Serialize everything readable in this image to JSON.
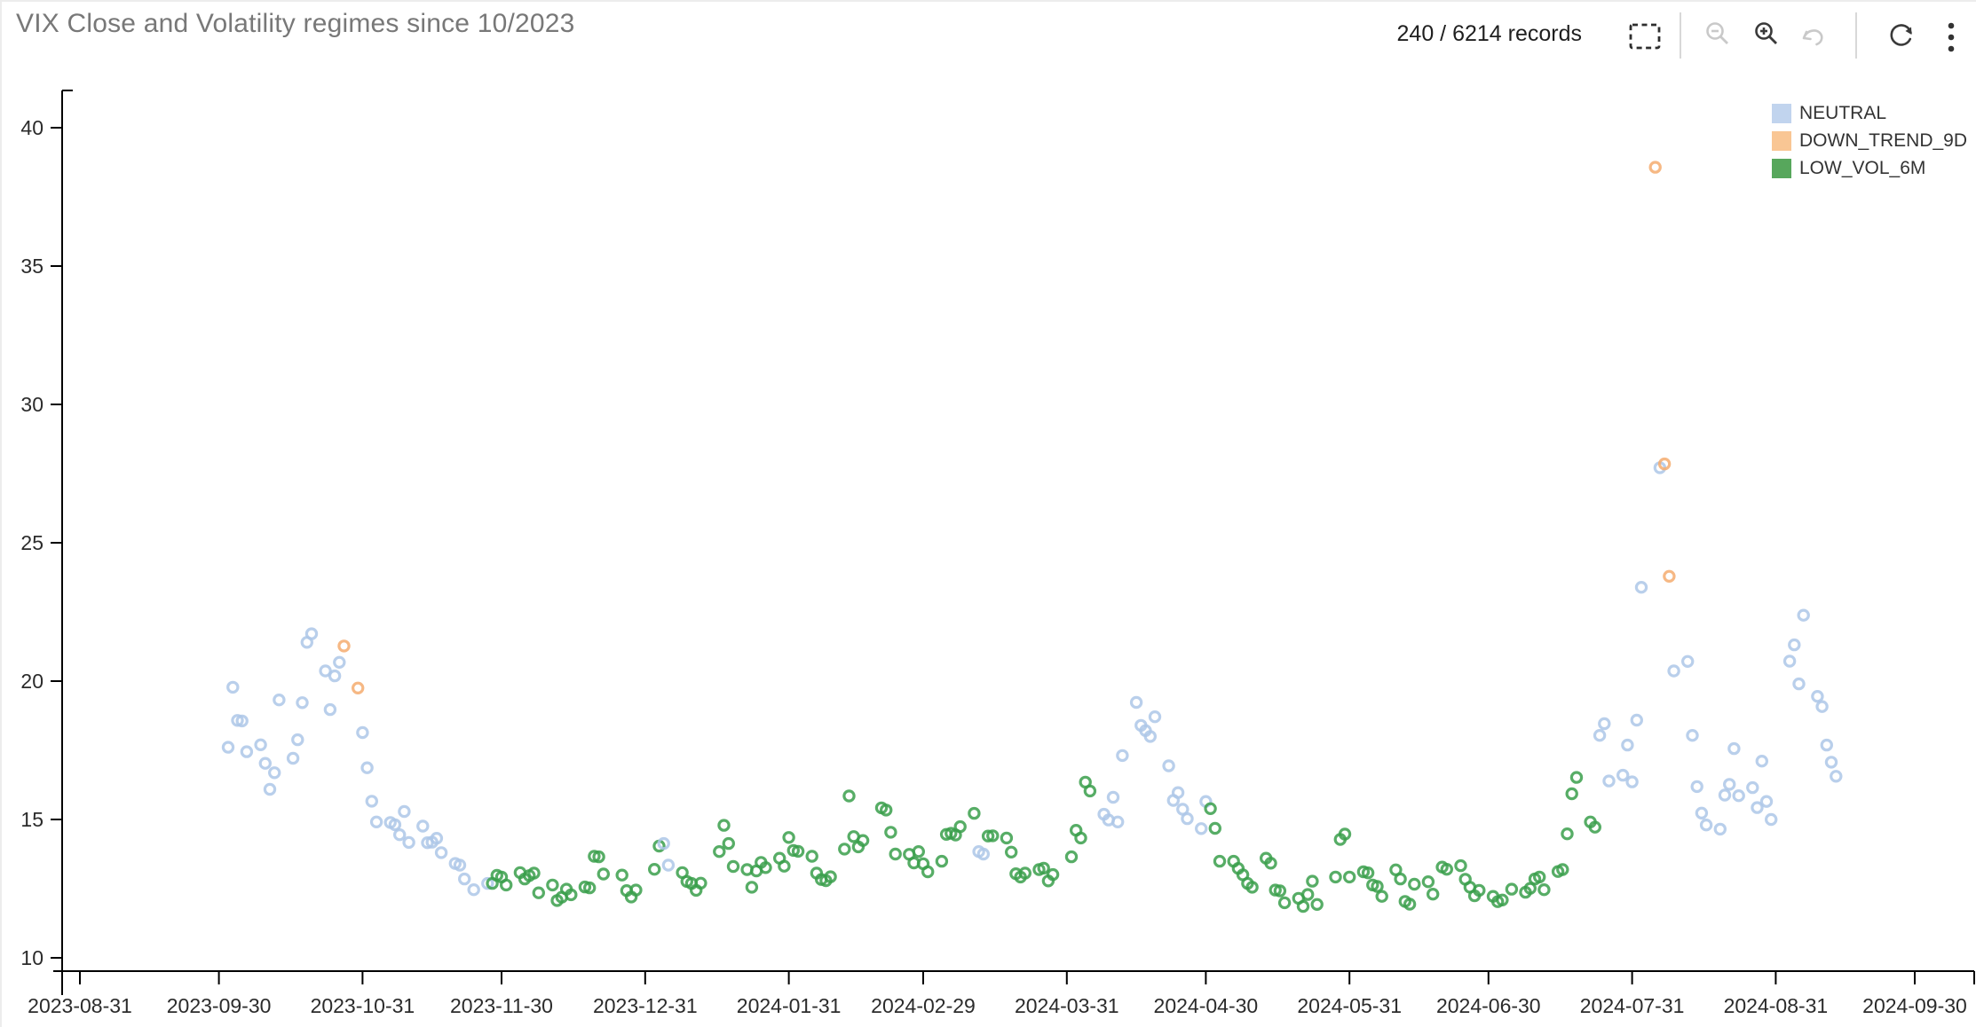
{
  "header": {
    "title": "VIX Close and Volatility regimes since 10/2023",
    "records_label": "240 / 6214 records"
  },
  "toolbar": {
    "icons": [
      "box-select",
      "zoom-out",
      "zoom-in",
      "undo",
      "refresh",
      "overflow-menu"
    ],
    "icon_color_enabled": "#3a3a3a",
    "icon_color_disabled": "#c9c9c9"
  },
  "chart_data": {
    "type": "scatter",
    "title": "VIX Close and Volatility regimes since 10/2023",
    "xlabel": "",
    "ylabel": "",
    "x_axis": {
      "domain": [
        "2023-08-31",
        "2024-09-30"
      ],
      "tick_labels": [
        "2023-08-31",
        "2023-09-30",
        "2023-10-31",
        "2023-11-30",
        "2023-12-31",
        "2024-01-31",
        "2024-02-29",
        "2024-03-31",
        "2024-04-30",
        "2024-05-31",
        "2024-06-30",
        "2024-07-31",
        "2024-08-31",
        "2024-09-30"
      ]
    },
    "y_axis": {
      "domain": [
        9.5,
        41.3
      ],
      "ticks": [
        10,
        15,
        20,
        25,
        30,
        35,
        40
      ]
    },
    "grid": false,
    "legend_position": "top-right",
    "legend": [
      {
        "key": "N",
        "label": "NEUTRAL",
        "color": "#c1d4ee"
      },
      {
        "key": "D",
        "label": "DOWN_TREND_9D",
        "color": "#f9c694"
      },
      {
        "key": "L",
        "label": "LOW_VOL_6M",
        "color": "#57a75c"
      }
    ],
    "regimes": {
      "N": {
        "label": "NEUTRAL",
        "stroke": "#adc7e8"
      },
      "D": {
        "label": "DOWN_TREND_9D",
        "stroke": "#f5ab6e"
      },
      "L": {
        "label": "LOW_VOL_6M",
        "stroke": "#3a9f4b"
      }
    },
    "points": [
      [
        "2023-10-02",
        17.61,
        "N"
      ],
      [
        "2023-10-03",
        19.78,
        "N"
      ],
      [
        "2023-10-04",
        18.58,
        "N"
      ],
      [
        "2023-10-05",
        18.56,
        "N"
      ],
      [
        "2023-10-06",
        17.45,
        "N"
      ],
      [
        "2023-10-09",
        17.7,
        "N"
      ],
      [
        "2023-10-10",
        17.03,
        "N"
      ],
      [
        "2023-10-11",
        16.09,
        "N"
      ],
      [
        "2023-10-12",
        16.69,
        "N"
      ],
      [
        "2023-10-13",
        19.32,
        "N"
      ],
      [
        "2023-10-16",
        17.21,
        "N"
      ],
      [
        "2023-10-17",
        17.88,
        "N"
      ],
      [
        "2023-10-18",
        19.22,
        "N"
      ],
      [
        "2023-10-19",
        21.4,
        "N"
      ],
      [
        "2023-10-20",
        21.71,
        "N"
      ],
      [
        "2023-10-23",
        20.37,
        "N"
      ],
      [
        "2023-10-24",
        18.97,
        "N"
      ],
      [
        "2023-10-25",
        20.19,
        "N"
      ],
      [
        "2023-10-26",
        20.68,
        "N"
      ],
      [
        "2023-10-27",
        21.27,
        "D"
      ],
      [
        "2023-10-30",
        19.75,
        "D"
      ],
      [
        "2023-10-31",
        18.14,
        "N"
      ],
      [
        "2023-11-01",
        16.87,
        "N"
      ],
      [
        "2023-11-02",
        15.66,
        "N"
      ],
      [
        "2023-11-03",
        14.91,
        "N"
      ],
      [
        "2023-11-06",
        14.89,
        "N"
      ],
      [
        "2023-11-07",
        14.81,
        "N"
      ],
      [
        "2023-11-08",
        14.45,
        "N"
      ],
      [
        "2023-11-09",
        15.29,
        "N"
      ],
      [
        "2023-11-10",
        14.17,
        "N"
      ],
      [
        "2023-11-13",
        14.76,
        "N"
      ],
      [
        "2023-11-14",
        14.16,
        "N"
      ],
      [
        "2023-11-15",
        14.18,
        "N"
      ],
      [
        "2023-11-16",
        14.32,
        "N"
      ],
      [
        "2023-11-17",
        13.8,
        "N"
      ],
      [
        "2023-11-20",
        13.41,
        "N"
      ],
      [
        "2023-11-21",
        13.35,
        "N"
      ],
      [
        "2023-11-22",
        12.85,
        "N"
      ],
      [
        "2023-11-24",
        12.46,
        "N"
      ],
      [
        "2023-11-27",
        12.69,
        "N"
      ],
      [
        "2023-11-28",
        12.69,
        "L"
      ],
      [
        "2023-11-29",
        12.98,
        "L"
      ],
      [
        "2023-11-30",
        12.92,
        "L"
      ],
      [
        "2023-12-01",
        12.63,
        "L"
      ],
      [
        "2023-12-04",
        13.08,
        "L"
      ],
      [
        "2023-12-05",
        12.85,
        "L"
      ],
      [
        "2023-12-06",
        12.97,
        "L"
      ],
      [
        "2023-12-07",
        13.06,
        "L"
      ],
      [
        "2023-12-08",
        12.35,
        "L"
      ],
      [
        "2023-12-11",
        12.63,
        "L"
      ],
      [
        "2023-12-12",
        12.07,
        "L"
      ],
      [
        "2023-12-13",
        12.19,
        "L"
      ],
      [
        "2023-12-14",
        12.48,
        "L"
      ],
      [
        "2023-12-15",
        12.28,
        "L"
      ],
      [
        "2023-12-18",
        12.56,
        "L"
      ],
      [
        "2023-12-19",
        12.53,
        "L"
      ],
      [
        "2023-12-20",
        13.67,
        "L"
      ],
      [
        "2023-12-21",
        13.65,
        "L"
      ],
      [
        "2023-12-22",
        13.03,
        "L"
      ],
      [
        "2023-12-26",
        12.99,
        "L"
      ],
      [
        "2023-12-27",
        12.43,
        "L"
      ],
      [
        "2023-12-28",
        12.2,
        "L"
      ],
      [
        "2023-12-29",
        12.45,
        "L"
      ],
      [
        "2024-01-02",
        13.2,
        "L"
      ],
      [
        "2024-01-03",
        14.04,
        "L"
      ],
      [
        "2024-01-04",
        14.13,
        "N"
      ],
      [
        "2024-01-05",
        13.35,
        "N"
      ],
      [
        "2024-01-08",
        13.08,
        "L"
      ],
      [
        "2024-01-09",
        12.76,
        "L"
      ],
      [
        "2024-01-10",
        12.69,
        "L"
      ],
      [
        "2024-01-11",
        12.44,
        "L"
      ],
      [
        "2024-01-12",
        12.7,
        "L"
      ],
      [
        "2024-01-16",
        13.84,
        "L"
      ],
      [
        "2024-01-17",
        14.79,
        "L"
      ],
      [
        "2024-01-18",
        14.13,
        "L"
      ],
      [
        "2024-01-19",
        13.3,
        "L"
      ],
      [
        "2024-01-22",
        13.19,
        "L"
      ],
      [
        "2024-01-23",
        12.55,
        "L"
      ],
      [
        "2024-01-24",
        13.14,
        "L"
      ],
      [
        "2024-01-25",
        13.45,
        "L"
      ],
      [
        "2024-01-26",
        13.26,
        "L"
      ],
      [
        "2024-01-29",
        13.6,
        "L"
      ],
      [
        "2024-01-30",
        13.31,
        "L"
      ],
      [
        "2024-01-31",
        14.35,
        "L"
      ],
      [
        "2024-02-01",
        13.88,
        "L"
      ],
      [
        "2024-02-02",
        13.85,
        "L"
      ],
      [
        "2024-02-05",
        13.67,
        "L"
      ],
      [
        "2024-02-06",
        13.06,
        "L"
      ],
      [
        "2024-02-07",
        12.83,
        "L"
      ],
      [
        "2024-02-08",
        12.79,
        "L"
      ],
      [
        "2024-02-09",
        12.93,
        "L"
      ],
      [
        "2024-02-12",
        13.93,
        "L"
      ],
      [
        "2024-02-13",
        15.85,
        "L"
      ],
      [
        "2024-02-14",
        14.38,
        "L"
      ],
      [
        "2024-02-15",
        14.01,
        "L"
      ],
      [
        "2024-02-16",
        14.24,
        "L"
      ],
      [
        "2024-02-20",
        15.42,
        "L"
      ],
      [
        "2024-02-21",
        15.34,
        "L"
      ],
      [
        "2024-02-22",
        14.54,
        "L"
      ],
      [
        "2024-02-23",
        13.75,
        "L"
      ],
      [
        "2024-02-26",
        13.74,
        "L"
      ],
      [
        "2024-02-27",
        13.43,
        "L"
      ],
      [
        "2024-02-28",
        13.84,
        "L"
      ],
      [
        "2024-02-29",
        13.4,
        "L"
      ],
      [
        "2024-03-01",
        13.11,
        "L"
      ],
      [
        "2024-03-04",
        13.49,
        "L"
      ],
      [
        "2024-03-05",
        14.46,
        "L"
      ],
      [
        "2024-03-06",
        14.5,
        "L"
      ],
      [
        "2024-03-07",
        14.44,
        "L"
      ],
      [
        "2024-03-08",
        14.74,
        "L"
      ],
      [
        "2024-03-11",
        15.22,
        "L"
      ],
      [
        "2024-03-12",
        13.84,
        "N"
      ],
      [
        "2024-03-13",
        13.75,
        "N"
      ],
      [
        "2024-03-14",
        14.4,
        "L"
      ],
      [
        "2024-03-15",
        14.41,
        "L"
      ],
      [
        "2024-03-18",
        14.33,
        "L"
      ],
      [
        "2024-03-19",
        13.82,
        "L"
      ],
      [
        "2024-03-20",
        13.04,
        "L"
      ],
      [
        "2024-03-21",
        12.92,
        "L"
      ],
      [
        "2024-03-22",
        13.06,
        "L"
      ],
      [
        "2024-03-25",
        13.19,
        "L"
      ],
      [
        "2024-03-26",
        13.24,
        "L"
      ],
      [
        "2024-03-27",
        12.78,
        "L"
      ],
      [
        "2024-03-28",
        13.01,
        "L"
      ],
      [
        "2024-04-01",
        13.65,
        "L"
      ],
      [
        "2024-04-02",
        14.61,
        "L"
      ],
      [
        "2024-04-03",
        14.33,
        "L"
      ],
      [
        "2024-04-04",
        16.35,
        "L"
      ],
      [
        "2024-04-05",
        16.03,
        "L"
      ],
      [
        "2024-04-08",
        15.19,
        "N"
      ],
      [
        "2024-04-09",
        14.98,
        "N"
      ],
      [
        "2024-04-10",
        15.8,
        "N"
      ],
      [
        "2024-04-11",
        14.91,
        "N"
      ],
      [
        "2024-04-12",
        17.31,
        "N"
      ],
      [
        "2024-04-15",
        19.23,
        "N"
      ],
      [
        "2024-04-16",
        18.4,
        "N"
      ],
      [
        "2024-04-17",
        18.21,
        "N"
      ],
      [
        "2024-04-18",
        18.0,
        "N"
      ],
      [
        "2024-04-19",
        18.71,
        "N"
      ],
      [
        "2024-04-22",
        16.94,
        "N"
      ],
      [
        "2024-04-23",
        15.69,
        "N"
      ],
      [
        "2024-04-24",
        15.97,
        "N"
      ],
      [
        "2024-04-25",
        15.37,
        "N"
      ],
      [
        "2024-04-26",
        15.03,
        "N"
      ],
      [
        "2024-04-29",
        14.67,
        "N"
      ],
      [
        "2024-04-30",
        15.65,
        "N"
      ],
      [
        "2024-05-01",
        15.39,
        "L"
      ],
      [
        "2024-05-02",
        14.68,
        "L"
      ],
      [
        "2024-05-03",
        13.49,
        "L"
      ],
      [
        "2024-05-06",
        13.49,
        "L"
      ],
      [
        "2024-05-07",
        13.23,
        "L"
      ],
      [
        "2024-05-08",
        13.0,
        "L"
      ],
      [
        "2024-05-09",
        12.69,
        "L"
      ],
      [
        "2024-05-10",
        12.55,
        "L"
      ],
      [
        "2024-05-13",
        13.6,
        "L"
      ],
      [
        "2024-05-14",
        13.42,
        "L"
      ],
      [
        "2024-05-15",
        12.45,
        "L"
      ],
      [
        "2024-05-16",
        12.42,
        "L"
      ],
      [
        "2024-05-17",
        11.99,
        "L"
      ],
      [
        "2024-05-20",
        12.15,
        "L"
      ],
      [
        "2024-05-21",
        11.86,
        "L"
      ],
      [
        "2024-05-22",
        12.29,
        "L"
      ],
      [
        "2024-05-23",
        12.77,
        "L"
      ],
      [
        "2024-05-24",
        11.93,
        "L"
      ],
      [
        "2024-05-28",
        12.92,
        "L"
      ],
      [
        "2024-05-29",
        14.28,
        "L"
      ],
      [
        "2024-05-30",
        14.47,
        "L"
      ],
      [
        "2024-05-31",
        12.92,
        "L"
      ],
      [
        "2024-06-03",
        13.11,
        "L"
      ],
      [
        "2024-06-04",
        13.07,
        "L"
      ],
      [
        "2024-06-05",
        12.63,
        "L"
      ],
      [
        "2024-06-06",
        12.58,
        "L"
      ],
      [
        "2024-06-07",
        12.22,
        "L"
      ],
      [
        "2024-06-10",
        13.18,
        "L"
      ],
      [
        "2024-06-11",
        12.85,
        "L"
      ],
      [
        "2024-06-12",
        12.04,
        "L"
      ],
      [
        "2024-06-13",
        11.94,
        "L"
      ],
      [
        "2024-06-14",
        12.66,
        "L"
      ],
      [
        "2024-06-17",
        12.75,
        "L"
      ],
      [
        "2024-06-18",
        12.3,
        "L"
      ],
      [
        "2024-06-20",
        13.28,
        "L"
      ],
      [
        "2024-06-21",
        13.2,
        "L"
      ],
      [
        "2024-06-24",
        13.33,
        "L"
      ],
      [
        "2024-06-25",
        12.84,
        "L"
      ],
      [
        "2024-06-26",
        12.55,
        "L"
      ],
      [
        "2024-06-27",
        12.24,
        "L"
      ],
      [
        "2024-06-28",
        12.44,
        "L"
      ],
      [
        "2024-07-01",
        12.22,
        "L"
      ],
      [
        "2024-07-02",
        12.03,
        "L"
      ],
      [
        "2024-07-03",
        12.09,
        "L"
      ],
      [
        "2024-07-05",
        12.48,
        "L"
      ],
      [
        "2024-07-08",
        12.37,
        "L"
      ],
      [
        "2024-07-09",
        12.51,
        "L"
      ],
      [
        "2024-07-10",
        12.85,
        "L"
      ],
      [
        "2024-07-11",
        12.92,
        "L"
      ],
      [
        "2024-07-12",
        12.46,
        "L"
      ],
      [
        "2024-07-15",
        13.12,
        "L"
      ],
      [
        "2024-07-16",
        13.19,
        "L"
      ],
      [
        "2024-07-17",
        14.48,
        "L"
      ],
      [
        "2024-07-18",
        15.93,
        "L"
      ],
      [
        "2024-07-19",
        16.52,
        "L"
      ],
      [
        "2024-07-22",
        14.91,
        "L"
      ],
      [
        "2024-07-23",
        14.72,
        "L"
      ],
      [
        "2024-07-24",
        18.04,
        "N"
      ],
      [
        "2024-07-25",
        18.46,
        "N"
      ],
      [
        "2024-07-26",
        16.39,
        "N"
      ],
      [
        "2024-07-29",
        16.6,
        "N"
      ],
      [
        "2024-07-30",
        17.69,
        "N"
      ],
      [
        "2024-07-31",
        16.36,
        "N"
      ],
      [
        "2024-08-01",
        18.59,
        "N"
      ],
      [
        "2024-08-02",
        23.39,
        "N"
      ],
      [
        "2024-08-05",
        38.57,
        "D"
      ],
      [
        "2024-08-06",
        27.71,
        "N"
      ],
      [
        "2024-08-07",
        27.85,
        "D"
      ],
      [
        "2024-08-08",
        23.79,
        "D"
      ],
      [
        "2024-08-09",
        20.37,
        "N"
      ],
      [
        "2024-08-12",
        20.71,
        "N"
      ],
      [
        "2024-08-13",
        18.04,
        "N"
      ],
      [
        "2024-08-14",
        16.19,
        "N"
      ],
      [
        "2024-08-15",
        15.23,
        "N"
      ],
      [
        "2024-08-16",
        14.8,
        "N"
      ],
      [
        "2024-08-19",
        14.65,
        "N"
      ],
      [
        "2024-08-20",
        15.88,
        "N"
      ],
      [
        "2024-08-21",
        16.27,
        "N"
      ],
      [
        "2024-08-22",
        17.56,
        "N"
      ],
      [
        "2024-08-23",
        15.86,
        "N"
      ],
      [
        "2024-08-26",
        16.15,
        "N"
      ],
      [
        "2024-08-27",
        15.43,
        "N"
      ],
      [
        "2024-08-28",
        17.11,
        "N"
      ],
      [
        "2024-08-29",
        15.65,
        "N"
      ],
      [
        "2024-08-30",
        15.0,
        "N"
      ],
      [
        "2024-09-03",
        20.72,
        "N"
      ],
      [
        "2024-09-04",
        21.31,
        "N"
      ],
      [
        "2024-09-05",
        19.9,
        "N"
      ],
      [
        "2024-09-06",
        22.38,
        "N"
      ],
      [
        "2024-09-09",
        19.45,
        "N"
      ],
      [
        "2024-09-10",
        19.08,
        "N"
      ],
      [
        "2024-09-11",
        17.69,
        "N"
      ],
      [
        "2024-09-12",
        17.07,
        "N"
      ],
      [
        "2024-09-13",
        16.56,
        "N"
      ]
    ]
  }
}
